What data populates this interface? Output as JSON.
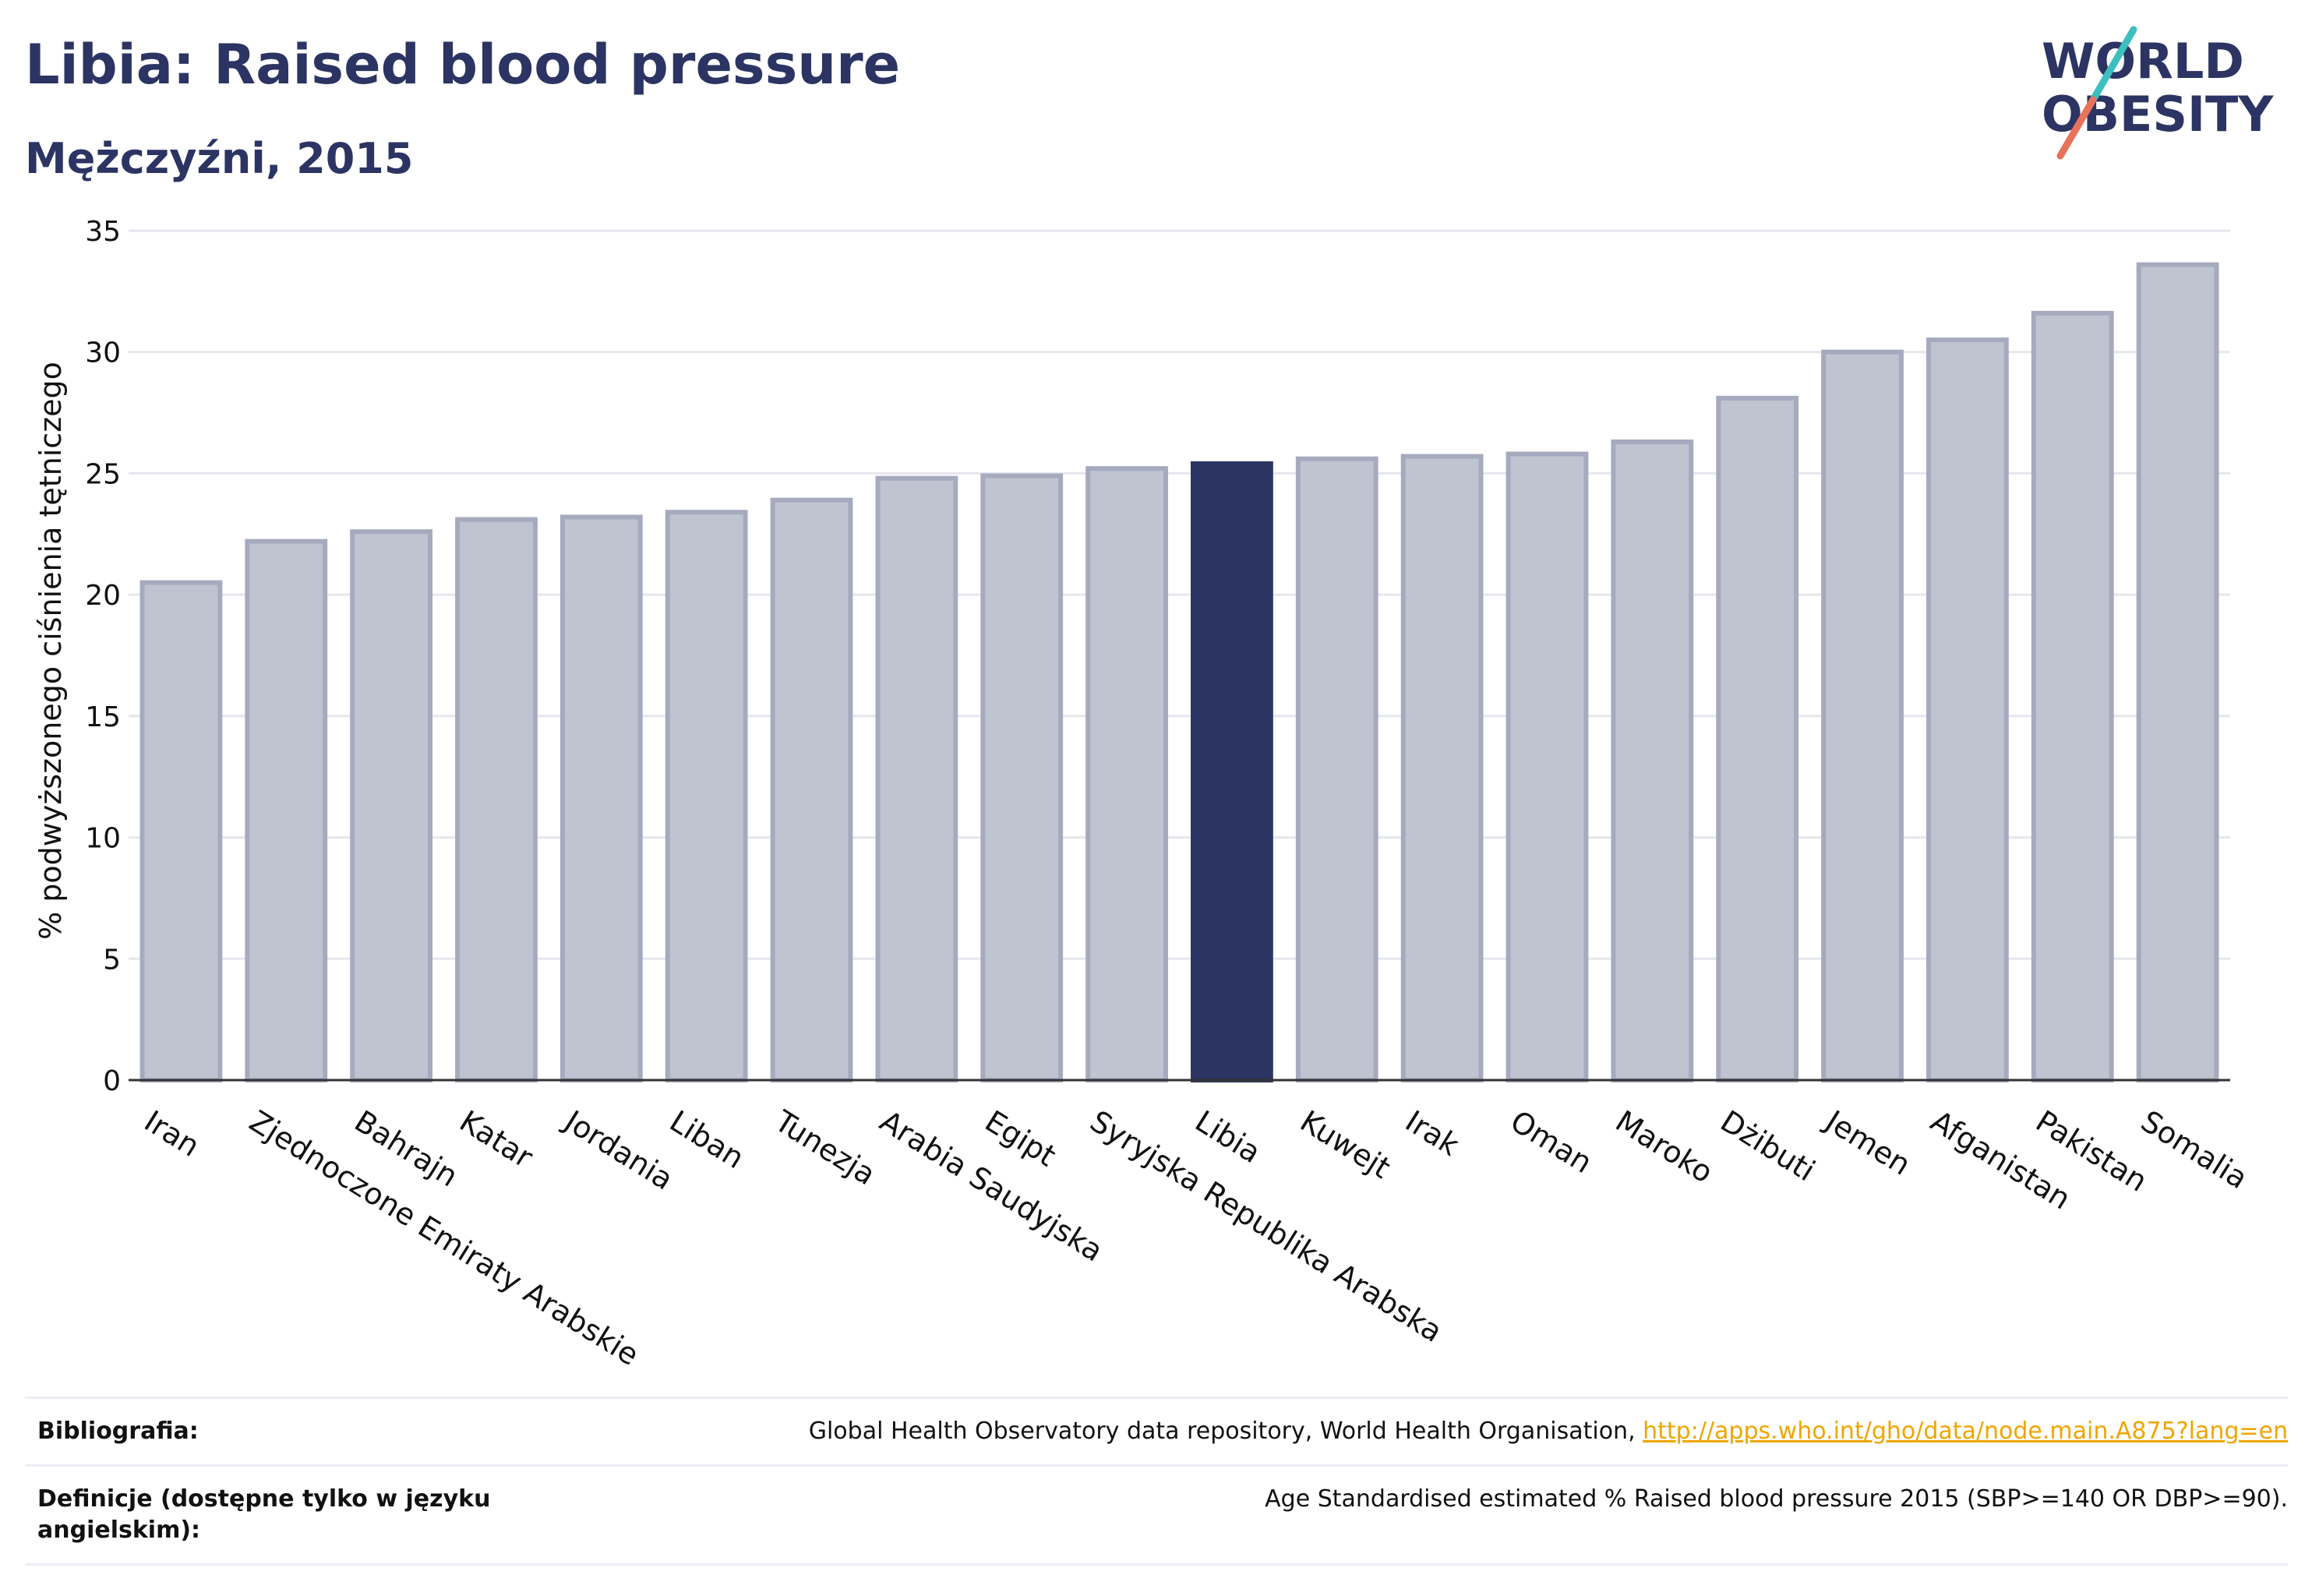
{
  "title": "Libia: Raised blood pressure",
  "subtitle": "Mężczyźni, 2015",
  "logo": {
    "line1": "WORLD",
    "line2": "OBESITY"
  },
  "colors": {
    "highlight": "#2b3462",
    "bar": "#c0c3d0",
    "bar_border": "#a6aabe",
    "text": "#2b3462",
    "accent_teal": "#3cbfbf",
    "accent_coral": "#e8735a"
  },
  "chart_data": {
    "type": "bar",
    "ylabel": "% podwyższonego ciśnienia tętniczego",
    "ylim": [
      0,
      35
    ],
    "yticks": [
      0,
      5,
      10,
      15,
      20,
      25,
      30,
      35
    ],
    "grid": true,
    "highlight": "Libia",
    "categories": [
      "Iran",
      "Zjednoczone Emiraty Arabskie",
      "Bahrajn",
      "Katar",
      "Jordania",
      "Liban",
      "Tunezja",
      "Arabia Saudyjska",
      "Egipt",
      "Syryjska Republika Arabska",
      "Libia",
      "Kuwejt",
      "Irak",
      "Oman",
      "Maroko",
      "Dżibuti",
      "Jemen",
      "Afganistan",
      "Pakistan",
      "Somalia"
    ],
    "values": [
      20.5,
      22.2,
      22.6,
      23.1,
      23.2,
      23.4,
      23.9,
      24.8,
      24.9,
      25.2,
      25.4,
      25.6,
      25.7,
      25.8,
      26.3,
      28.1,
      30.0,
      30.5,
      31.6,
      33.6
    ]
  },
  "footer": {
    "bibliography_label": "Bibliografia:",
    "bibliography_text": "Global Health Observatory data repository, World Health Organisation, ",
    "bibliography_link": "http://apps.who.int/gho/data/node.main.A875?lang=en",
    "definition_label": "Definicje (dostępne tylko w języku angielskim):",
    "definition_text": "Age Standardised estimated % Raised blood pressure 2015 (SBP>=140 OR DBP>=90)."
  }
}
